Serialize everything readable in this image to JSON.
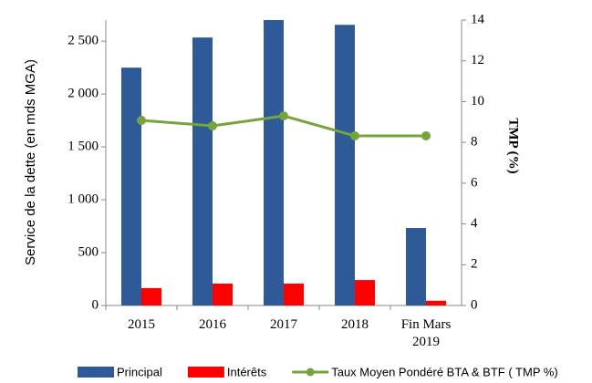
{
  "chart_data": {
    "type": "bar",
    "y_label": "Service de la dette (en mds MGA)",
    "y2_label": "TMP (%)",
    "categories": [
      "2015",
      "2016",
      "2017",
      "2018",
      "Fin Mars 2019"
    ],
    "series": [
      {
        "name": "Principal",
        "color": "#2e5a97",
        "type": "bar",
        "values": [
          2250,
          2535,
          2700,
          2655,
          733
        ]
      },
      {
        "name": "Intérêts",
        "color": "#ff0000",
        "type": "bar",
        "values": [
          165,
          207,
          207,
          241,
          45
        ]
      },
      {
        "name": "Taux Moyen Pondéré BTA & BTF ( TMP %)",
        "color": "#77a33d",
        "type": "line",
        "axis": "y2",
        "values": [
          9.08,
          8.81,
          9.3,
          8.32,
          8.32
        ]
      }
    ],
    "ylim": [
      0,
      2700
    ],
    "yticks": [
      0,
      500,
      {
        "value": 1000,
        "label": "1 000"
      },
      {
        "value": 1500,
        "label": "1 500"
      },
      {
        "value": 2000,
        "label": "2 000"
      },
      {
        "value": 2500,
        "label": "2 500"
      }
    ],
    "y2lim": [
      0,
      14
    ],
    "y2ticks": [
      0,
      2,
      4,
      6,
      8,
      10,
      12,
      14
    ],
    "legend": "bottom"
  }
}
